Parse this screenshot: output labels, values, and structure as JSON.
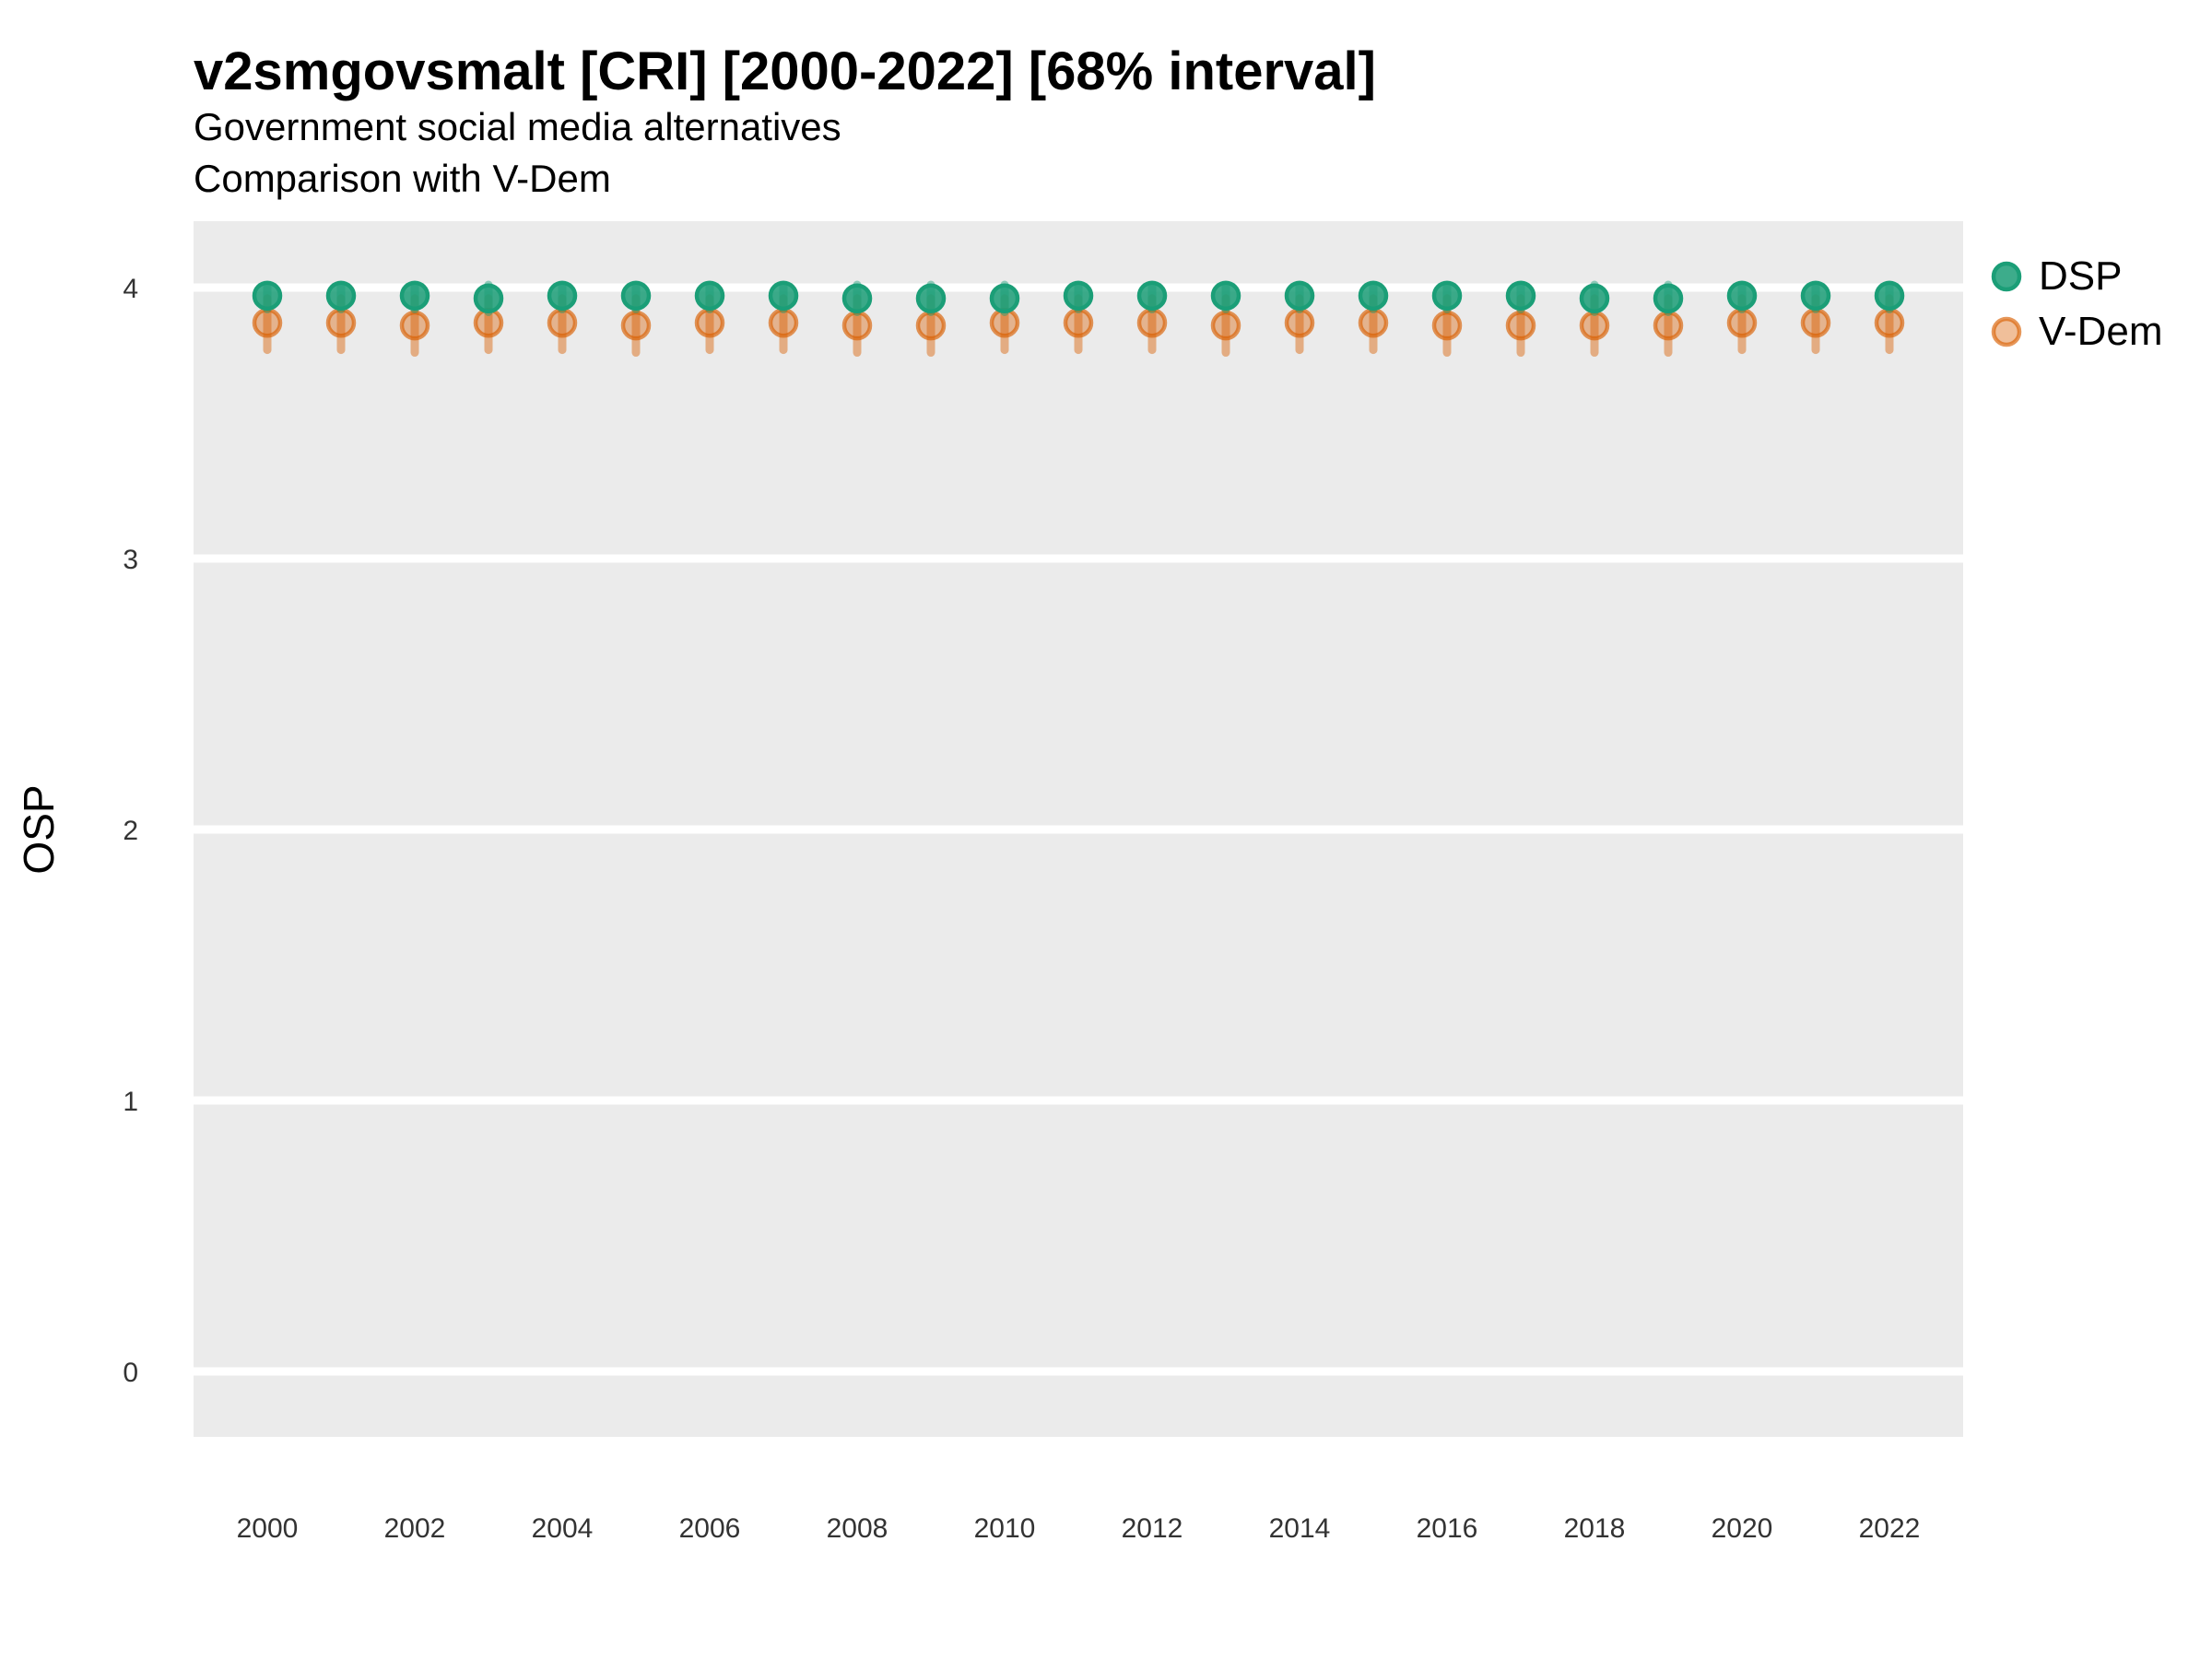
{
  "header": {
    "title": "v2smgovsmalt [CRI] [2000-2022] [68% interval]",
    "subtitle1": "Government social media alternatives",
    "subtitle2": "Comparison with V-Dem"
  },
  "axes": {
    "y_label": "OSP",
    "y_ticks": [
      4,
      3,
      2,
      1,
      0
    ],
    "x_ticks": [
      2000,
      2002,
      2004,
      2006,
      2008,
      2010,
      2012,
      2014,
      2016,
      2018,
      2020,
      2022
    ]
  },
  "colors": {
    "dsp": "#1b9e77",
    "vdem": "#d95f02",
    "panel_background": "#ebebeb",
    "gridline": "#ffffff",
    "tick_text": "#333333",
    "title_text": "#000000"
  },
  "chart_data": {
    "type": "scatter",
    "title": "v2smgovsmalt [CRI] [2000-2022] [68% interval]",
    "subtitle": [
      "Government social media alternatives",
      "Comparison with V-Dem"
    ],
    "xlabel": "",
    "ylabel": "OSP",
    "ylim": [
      -0.24,
      4.24
    ],
    "xlim": [
      1999,
      2023
    ],
    "grid": "major-horizontal-only",
    "legend_position": "right",
    "interval_note": "68% interval shown as thick vertical bands",
    "x": [
      2000,
      2001,
      2002,
      2003,
      2004,
      2005,
      2006,
      2007,
      2008,
      2009,
      2010,
      2011,
      2012,
      2013,
      2014,
      2015,
      2016,
      2017,
      2018,
      2019,
      2020,
      2021,
      2022
    ],
    "series": [
      {
        "name": "DSP",
        "color": "#1b9e77",
        "values": [
          3.97,
          3.97,
          3.97,
          3.96,
          3.97,
          3.97,
          3.97,
          3.97,
          3.96,
          3.96,
          3.96,
          3.97,
          3.97,
          3.97,
          3.97,
          3.97,
          3.97,
          3.97,
          3.96,
          3.96,
          3.97,
          3.97,
          3.97
        ],
        "interval_low": [
          3.92,
          3.92,
          3.92,
          3.91,
          3.92,
          3.92,
          3.92,
          3.92,
          3.91,
          3.91,
          3.91,
          3.92,
          3.92,
          3.92,
          3.92,
          3.92,
          3.92,
          3.92,
          3.91,
          3.91,
          3.92,
          3.92,
          3.92
        ],
        "interval_high": [
          4.01,
          4.01,
          4.01,
          4.01,
          4.01,
          4.01,
          4.01,
          4.01,
          4.01,
          4.01,
          4.01,
          4.01,
          4.01,
          4.01,
          4.01,
          4.01,
          4.01,
          4.01,
          4.01,
          4.01,
          4.01,
          4.01,
          4.01
        ]
      },
      {
        "name": "V-Dem",
        "color": "#d95f02",
        "values": [
          3.87,
          3.87,
          3.86,
          3.87,
          3.87,
          3.86,
          3.87,
          3.87,
          3.86,
          3.86,
          3.87,
          3.87,
          3.87,
          3.86,
          3.87,
          3.87,
          3.86,
          3.86,
          3.86,
          3.86,
          3.87,
          3.87,
          3.87
        ],
        "interval_low": [
          3.77,
          3.77,
          3.76,
          3.77,
          3.77,
          3.76,
          3.77,
          3.77,
          3.76,
          3.76,
          3.77,
          3.77,
          3.77,
          3.76,
          3.77,
          3.77,
          3.76,
          3.76,
          3.76,
          3.76,
          3.77,
          3.77,
          3.77
        ],
        "interval_high": [
          3.96,
          3.96,
          3.96,
          3.96,
          3.96,
          3.96,
          3.96,
          3.96,
          3.96,
          3.96,
          3.96,
          3.96,
          3.96,
          3.96,
          3.96,
          3.96,
          3.96,
          3.96,
          3.96,
          3.96,
          3.96,
          3.96,
          3.96
        ]
      }
    ]
  }
}
